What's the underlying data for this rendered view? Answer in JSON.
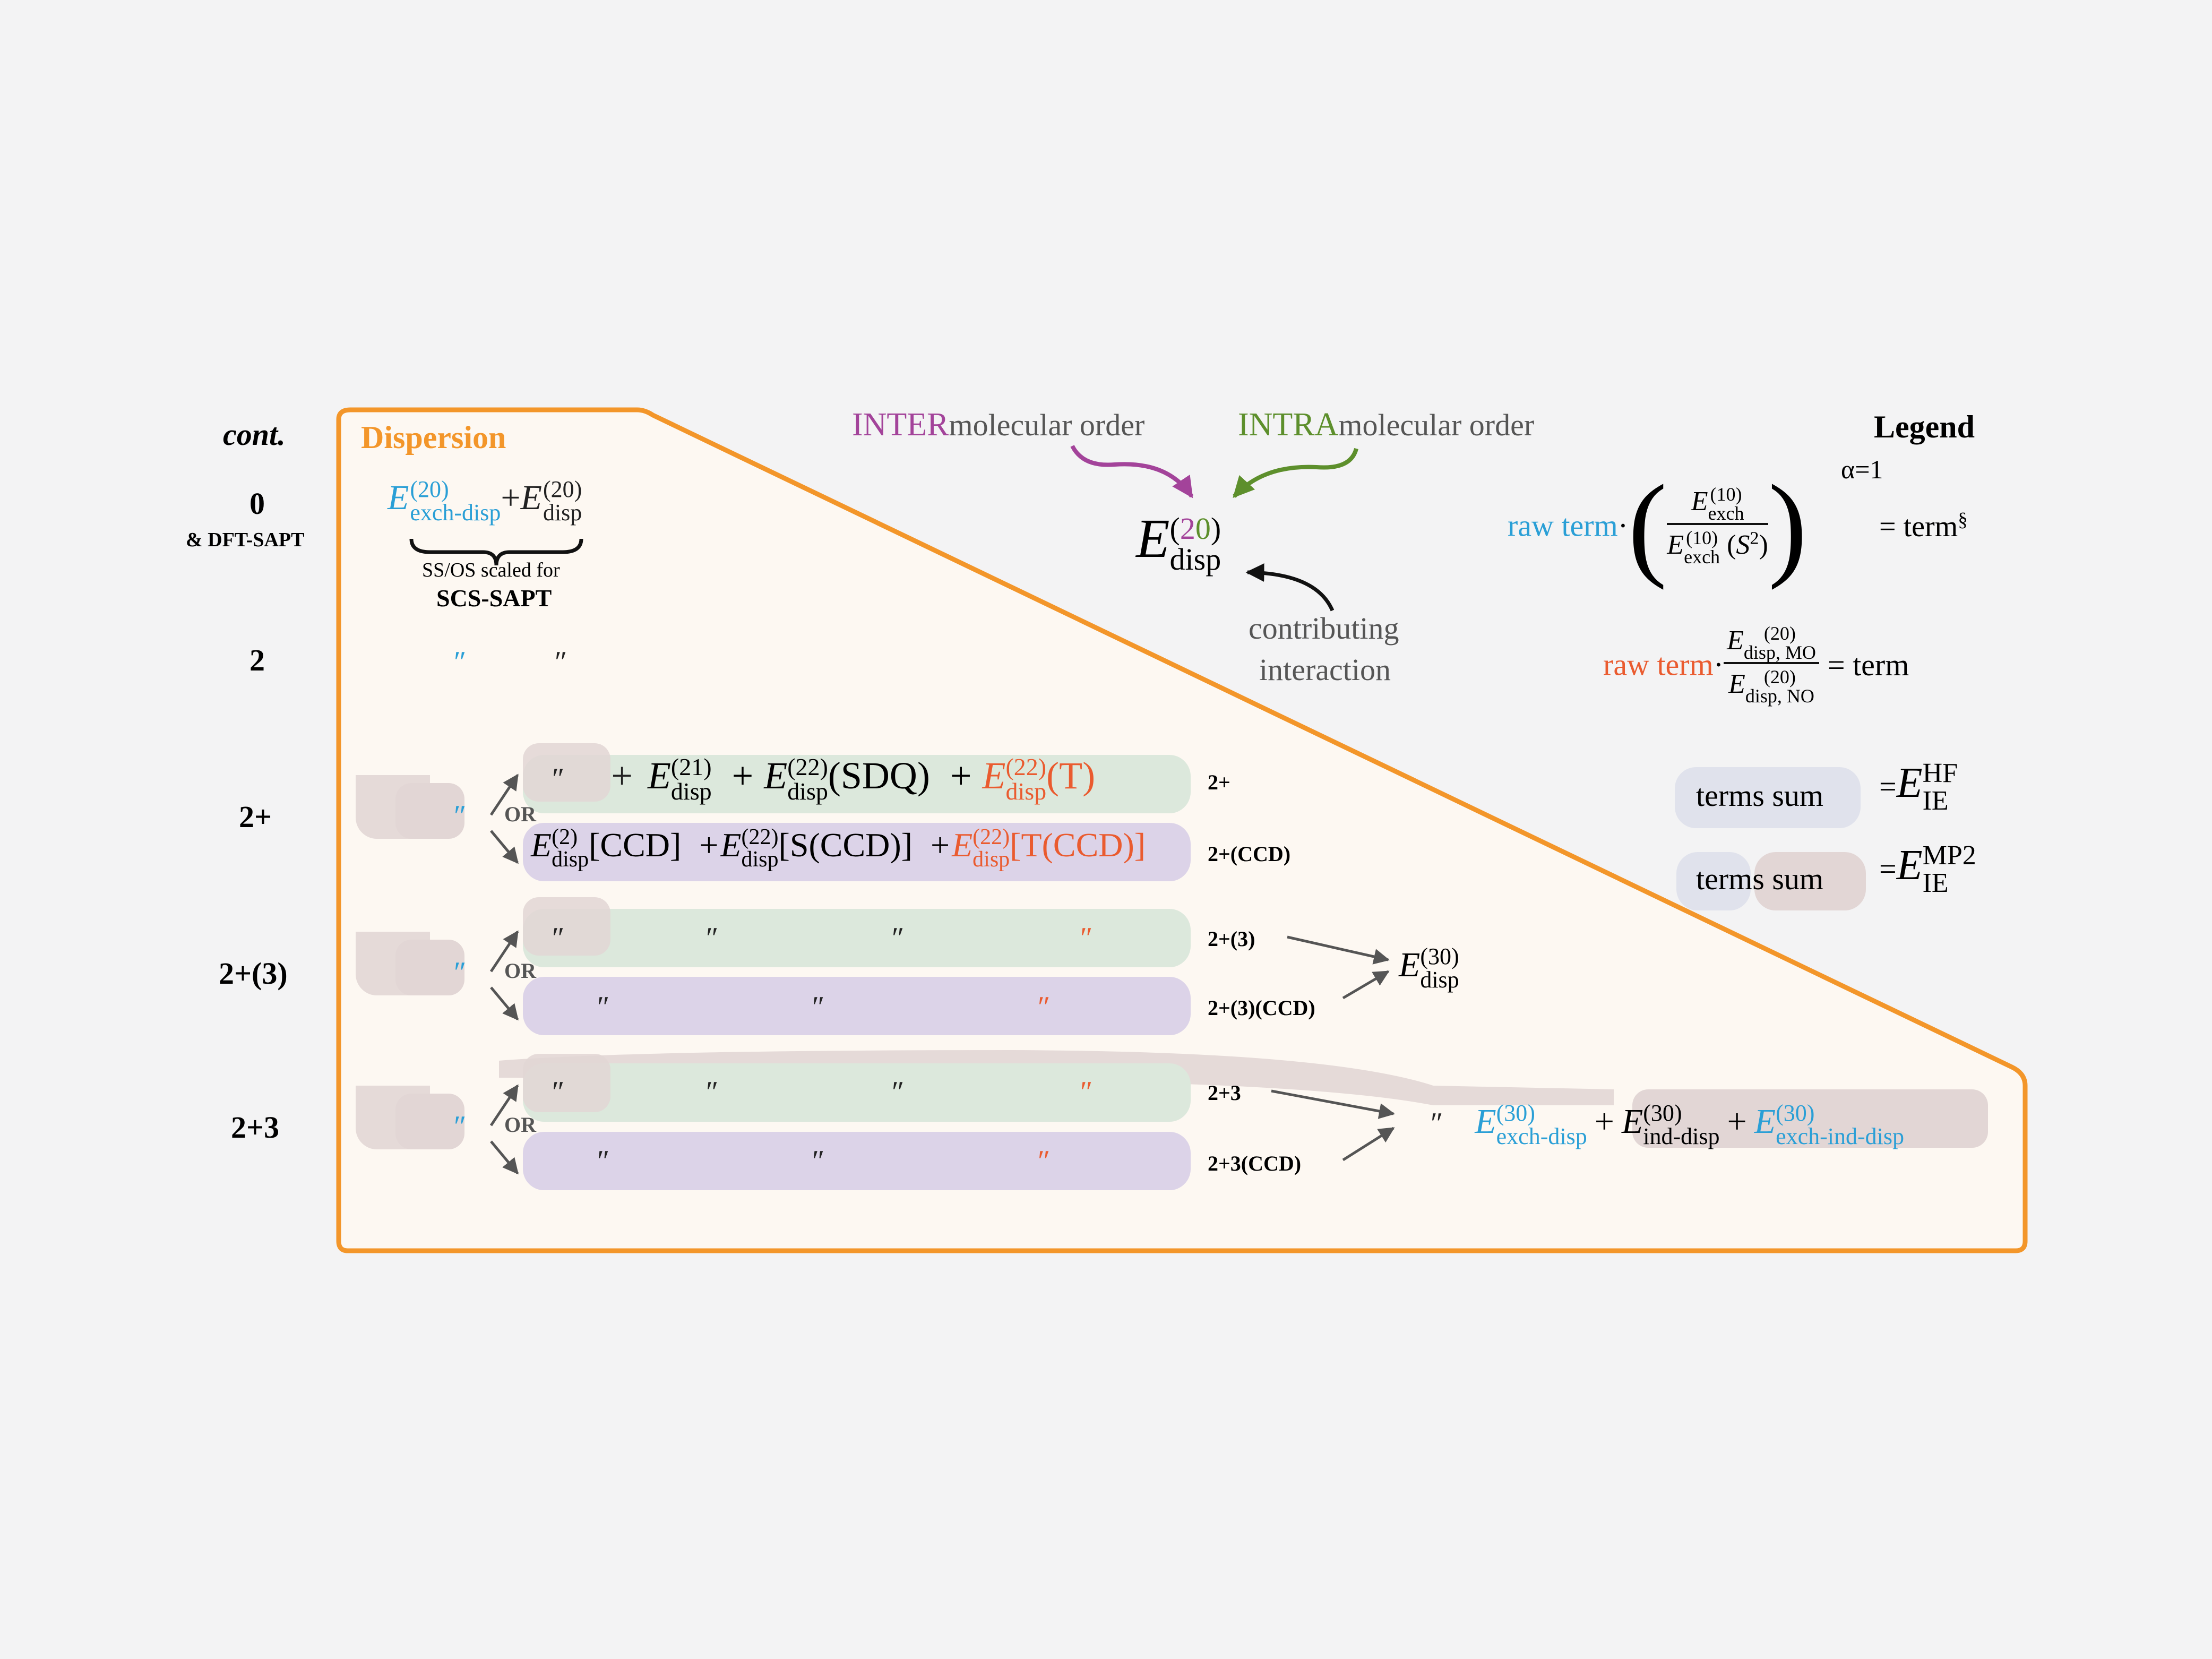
{
  "colors": {
    "background": "#f3f3f4",
    "panel_fill": "#fdf8f2",
    "panel_border": "#f3962a",
    "blue": "#2a9fd6",
    "red": "#ea5b2f",
    "purple": "#a3439a",
    "green": "#5d8f2c",
    "green_box": "#dce8dc",
    "purple_box": "#dcd3e8",
    "rose_box": "#e2d6d5",
    "blue_box": "#e0e2ec"
  },
  "rows": {
    "header": "cont.",
    "r0": "0",
    "r0_sub": "& DFT-SAPT",
    "r2": "2",
    "r2p": "2+",
    "r2p3": "2+(3)",
    "r23": "2+3"
  },
  "panel": {
    "title": "Dispersion",
    "brace_note": "SS/OS scaled for",
    "brace_note_bold": "SCS-SAPT"
  },
  "terms": {
    "E": "E",
    "exch_disp": "exch-disp",
    "disp": "disp",
    "sup20": "(20)",
    "sup21": "(21)",
    "sup22": "(22)",
    "sup2": "(2)",
    "sup30": "(30)",
    "sdq": "(SDQ)",
    "t": "(T)",
    "ccd": "[CCD]",
    "s_ccd": "[S(CCD)]",
    "t_ccd": "[T(CCD)]",
    "ind_disp": "ind-disp",
    "exch_ind_disp": "exch-ind-disp",
    "plus": "+",
    "ditto": "″",
    "or": "OR"
  },
  "labels": {
    "l2p": "2+",
    "l2pccd": "2+(CCD)",
    "l2p3": "2+(3)",
    "l2p3ccd": "2+(3)(CCD)",
    "l23": "2+3",
    "l23ccd": "2+3(CCD)"
  },
  "annotation": {
    "inter_cap": "INTER",
    "inter_rest": "molecular order",
    "intra_cap": "INTRA",
    "intra_rest": "molecular order",
    "center_sup_a": "2",
    "center_sup_b": "0",
    "contributing": "contributing",
    "interaction": "interaction"
  },
  "legend": {
    "title": "Legend",
    "raw_term": "raw term",
    "dot": "·",
    "exch": "exch",
    "sup10": "(10)",
    "s2": "S",
    "s2_sup": "2",
    "alpha": "α=1",
    "eq_term_sect": "= term",
    "sect": "§",
    "disp_mo": "disp, MO",
    "disp_no": "disp, NO",
    "eq_term": "= term",
    "terms_sum": "terms sum",
    "eq": "=",
    "ie": "IE",
    "hf": "HF",
    "mp2": "MP2"
  }
}
